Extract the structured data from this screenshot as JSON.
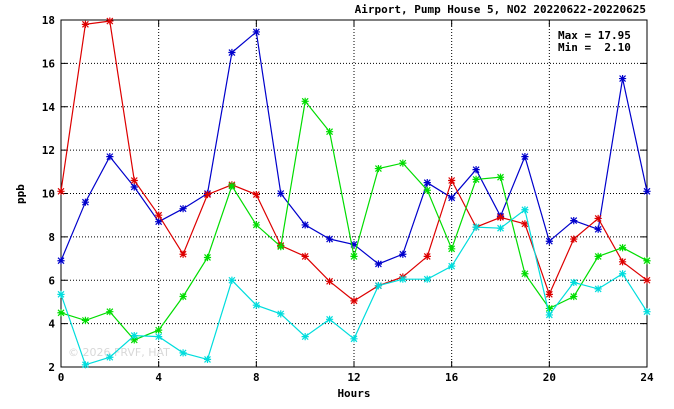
{
  "chart_data": {
    "type": "line",
    "title": "Airport, Pump House 5, NO2 20220622-20220625",
    "xlabel": "Hours",
    "ylabel": "ppb",
    "xlim": [
      0,
      24
    ],
    "ylim": [
      2,
      18
    ],
    "xticks": [
      0,
      4,
      8,
      12,
      16,
      20,
      24
    ],
    "yticks": [
      2,
      4,
      6,
      8,
      10,
      12,
      14,
      16,
      18
    ],
    "grid": true,
    "stats": {
      "max_text": "Max = 17.95",
      "min_text": "Min =  2.10"
    },
    "watermark": "© 2026 FRVF, HAT",
    "x": [
      0,
      1,
      2,
      3,
      4,
      5,
      6,
      7,
      8,
      9,
      10,
      11,
      12,
      13,
      14,
      15,
      16,
      17,
      18,
      19,
      20,
      21,
      22,
      23,
      24
    ],
    "series": [
      {
        "color": "#0000cc",
        "values": [
          6.9,
          9.6,
          11.7,
          10.3,
          8.7,
          9.3,
          10.0,
          16.5,
          17.45,
          10.0,
          8.55,
          7.9,
          7.65,
          6.75,
          7.2,
          10.5,
          9.8,
          11.1,
          8.95,
          11.7,
          7.8,
          8.75,
          8.35,
          15.3,
          10.1
        ]
      },
      {
        "color": "#dd0000",
        "values": [
          10.1,
          17.8,
          17.95,
          10.6,
          9.0,
          7.2,
          9.95,
          10.4,
          9.95,
          7.6,
          7.1,
          5.95,
          5.05,
          5.75,
          6.15,
          7.1,
          10.6,
          8.45,
          8.9,
          8.6,
          5.35,
          7.9,
          8.85,
          6.85,
          6.0
        ]
      },
      {
        "color": "#00dd00",
        "values": [
          4.5,
          4.15,
          4.55,
          3.25,
          3.7,
          5.25,
          7.05,
          10.35,
          8.55,
          7.55,
          14.25,
          12.85,
          7.1,
          11.15,
          11.4,
          10.15,
          7.45,
          10.65,
          10.75,
          6.3,
          4.7,
          5.25,
          7.1,
          7.5,
          6.9
        ]
      },
      {
        "color": "#00dddd",
        "values": [
          5.35,
          2.1,
          2.45,
          3.45,
          3.4,
          2.65,
          2.35,
          6.0,
          4.85,
          4.45,
          3.4,
          4.2,
          3.3,
          5.75,
          6.05,
          6.05,
          6.65,
          8.45,
          8.4,
          9.25,
          4.4,
          5.9,
          5.6,
          6.3,
          4.55
        ]
      }
    ]
  }
}
